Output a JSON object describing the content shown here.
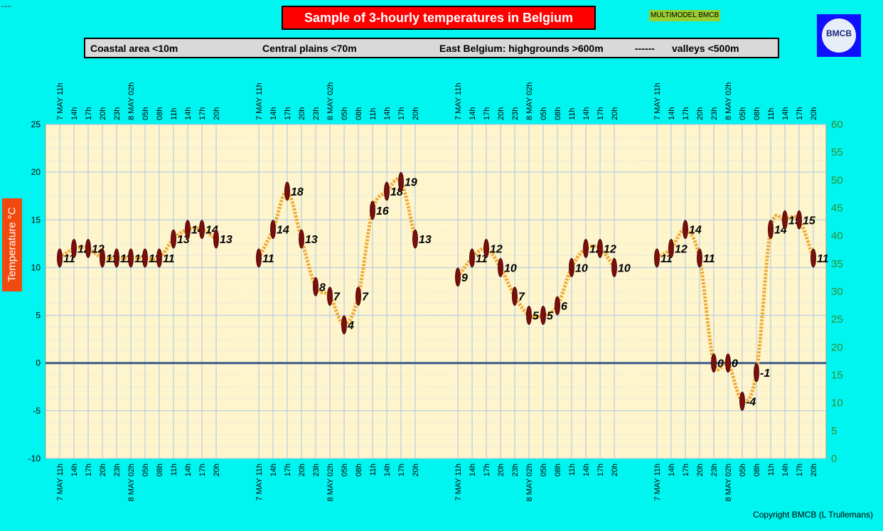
{
  "header": {
    "title": "Sample of 3-hourly temperatures in Belgium",
    "badge": "MULTIMODEL BMCB",
    "logo_text": "BMCB"
  },
  "regions": {
    "coastal": "Coastal area <10m",
    "central": "Central plains <70m",
    "east": "East Belgium: highgrounds >600m",
    "dashes": "------",
    "valleys": "valleys <500m"
  },
  "footer": {
    "copyright": "Copyright BMCB (L Trullemans)"
  },
  "colors": {
    "background": "#00F5F0",
    "plot_area": "#FFF5CC",
    "title_box": "#FF0000",
    "curve": "#F0A830",
    "marker": "#7A0E0E",
    "zero_line": "#3A5A8C",
    "right_axis": "#2E8B2E"
  },
  "chart_data": {
    "type": "line",
    "ylabel": "Temperature  °C",
    "ylim": [
      -10,
      25
    ],
    "yticks": [
      -10,
      -5,
      0,
      5,
      10,
      15,
      20,
      25
    ],
    "y2lim": [
      0,
      60
    ],
    "y2ticks": [
      0,
      5,
      10,
      15,
      20,
      25,
      30,
      35,
      40,
      45,
      50,
      55,
      60
    ],
    "categories": [
      "7 MAY 11h",
      "14h",
      "17h",
      "20h",
      "23h",
      "8 MAY 02h",
      "05h",
      "08h",
      "11h",
      "14h",
      "17h",
      "20h"
    ],
    "grid": true,
    "series": [
      {
        "name": "Coastal area <10m",
        "values": [
          11,
          12,
          12,
          11,
          11,
          11,
          11,
          11,
          13,
          14,
          14,
          13
        ]
      },
      {
        "name": "Central plains <70m",
        "values": [
          11,
          14,
          18,
          13,
          8,
          7,
          4,
          7,
          16,
          18,
          19,
          13
        ]
      },
      {
        "name": "East Belgium: highgrounds >600m",
        "values": [
          9,
          11,
          12,
          10,
          7,
          5,
          5,
          6,
          10,
          12,
          12,
          10
        ]
      },
      {
        "name": "valleys <500m",
        "values": [
          11,
          12,
          14,
          11,
          0,
          0,
          -4,
          -1,
          14,
          15,
          15,
          11
        ]
      }
    ]
  }
}
